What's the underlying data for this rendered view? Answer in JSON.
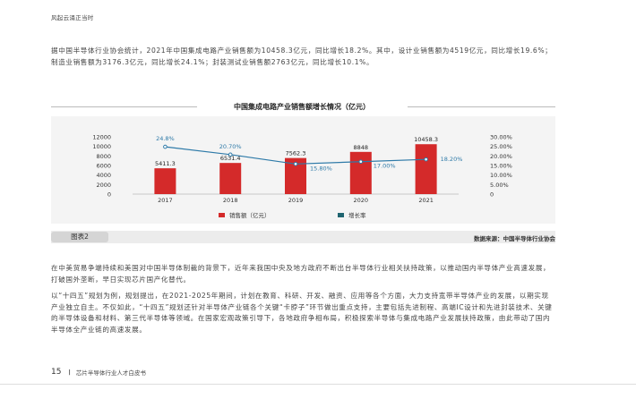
{
  "header": {
    "title": "风起云涌正当时"
  },
  "paragraphs": {
    "p1": "据中国半导体行业协会统计，2021年中国集成电路产业销售额为10458.3亿元，同比增长18.2%。其中，设计业销售额为4519亿元，同比增长19.6%；制造业销售额为3176.3亿元，同比增长24.1%；封装测试业销售额2763亿元，同比增长10.1%。",
    "p2": "在中美贸易争端持续和美国对中国半导体制裁的背景下，近年来我国中央及地方政府不断出台半导体行业相关扶持政策，以推动国内半导体产业高速发展，打破国外垄断，早日实现芯片国产化替代。",
    "p3": "以“十四五”规划为例，规划提出，在2021-2025年期间，计划在教育、科研、开发、融资、应用等各个方面，大力支持宽带半导体产业的发展，以期实现产业独立自主。不仅如此，“十四五”规划还针对半导体产业链各个关键“卡脖子”环节做出重点支持，主要包括先进制程、高端IC设计和先进封装技术、关键的半导体设备和材料、第三代半导体等领域。在国家宏观政策引导下，各地政府争相布局，积极探索半导体与集成电路产业发展扶持政策，由此带动了国内半导体全产业链的高速发展。"
  },
  "figure": {
    "tag": "图表2",
    "source": "数据来源：中国半导体行业协会"
  },
  "chart_data": {
    "type": "bar",
    "title": "中国集成电路产业销售额增长情况（亿元）",
    "categories": [
      "2017",
      "2018",
      "2019",
      "2020",
      "2021"
    ],
    "series": [
      {
        "name": "销售额（亿元）",
        "type": "bar",
        "axis": "left",
        "color": "#d42a2a",
        "values": [
          5411.3,
          6531.4,
          7562.3,
          8848,
          10458.3
        ],
        "labels": [
          "5411.3",
          "6531.4",
          "7562.3",
          "8848",
          "10458.3"
        ]
      },
      {
        "name": "增长率",
        "type": "line",
        "axis": "right",
        "color": "#2e7aa8",
        "values": [
          24.8,
          20.7,
          15.8,
          17.0,
          18.2
        ],
        "labels": [
          "24.8%",
          "20.70%",
          "15.80%",
          "17.00%",
          "18.20%"
        ]
      }
    ],
    "ylim_left": [
      0,
      12000
    ],
    "yticks_left": [
      "0",
      "2000",
      "4000",
      "6000",
      "8000",
      "10000",
      "12000"
    ],
    "ylim_right": [
      0,
      30
    ],
    "yticks_right": [
      "0",
      "5.00%",
      "10.00%",
      "15.00%",
      "20.00%",
      "25.00%",
      "30.00%"
    ],
    "legend_position": "bottom",
    "grid": false
  },
  "footer": {
    "page": "15",
    "book": "芯片半导体行业人才白皮书"
  }
}
